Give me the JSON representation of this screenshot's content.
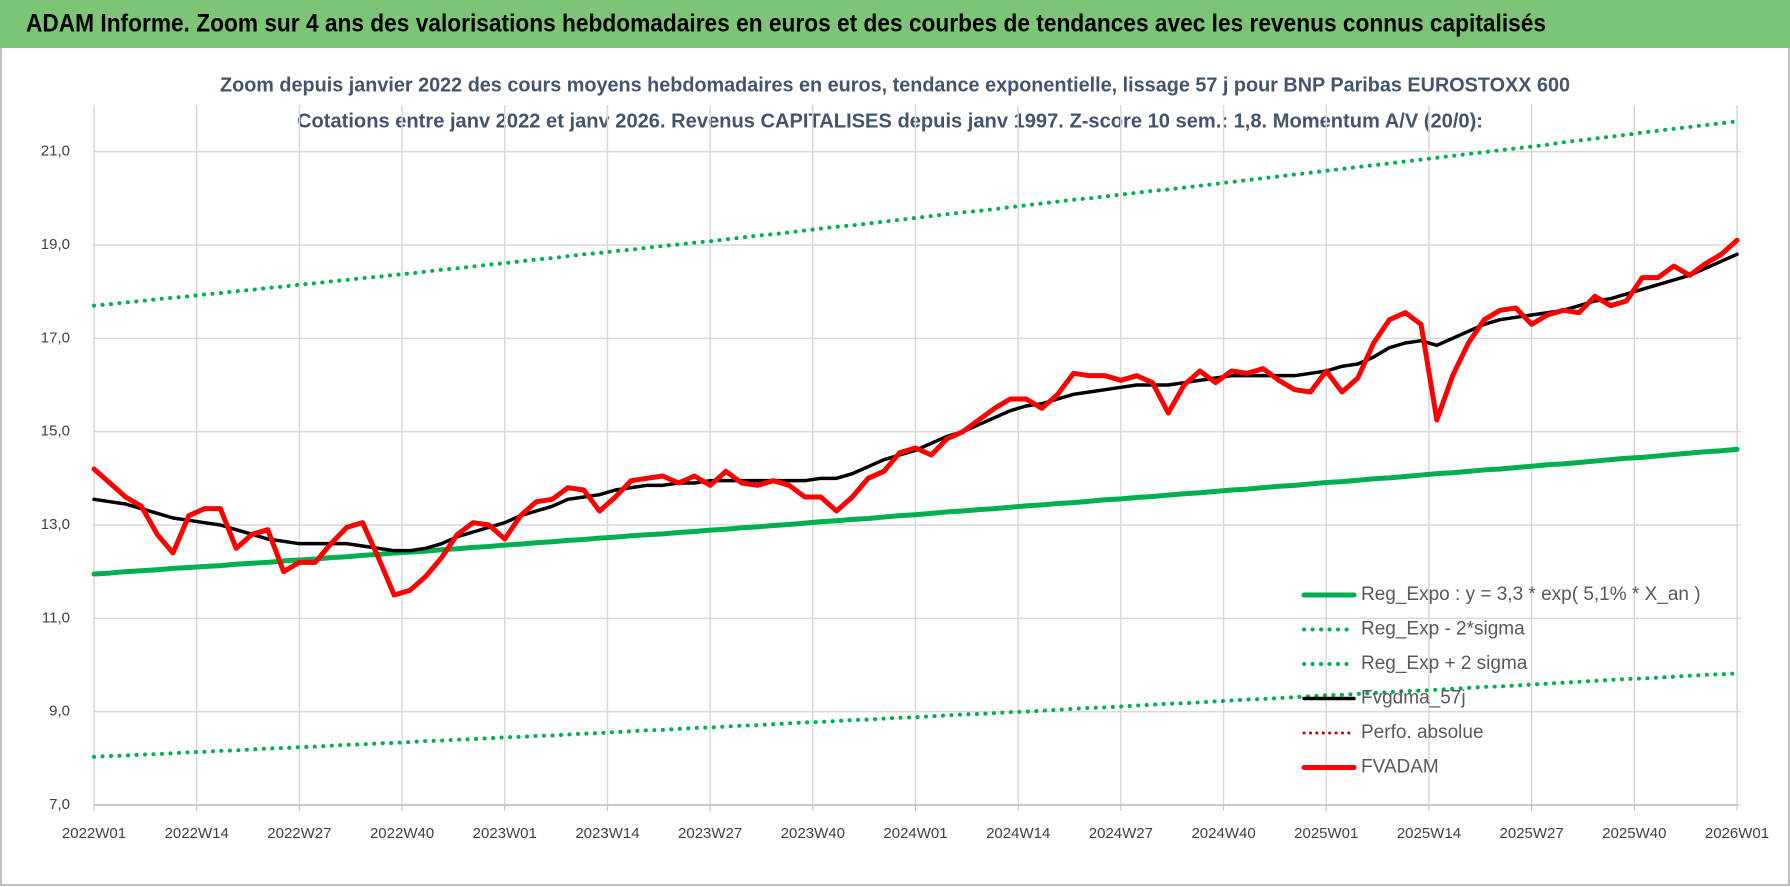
{
  "header": {
    "title": "ADAM Informe. Zoom sur 4 ans des valorisations hebdomadaires en euros et des courbes de tendances avec les revenus connus capitalisés"
  },
  "chart_data": {
    "type": "line",
    "title": [
      "Zoom depuis janvier 2022 des cours moyens hebdomadaires en euros, tendance exponentielle, lissage 57 j pour BNP Paribas EUROSTOXX 600",
      "Cotations entre janv 2022 et janv 2026. Revenus CAPITALISES depuis janv 1997. Z-score 10 sem.: 1,8. Momentum A/V (20/0):"
    ],
    "x": [
      0,
      2,
      4,
      6,
      8,
      10,
      12,
      14,
      16,
      18,
      20,
      22,
      24,
      26,
      28,
      30,
      32,
      34,
      36,
      38,
      40,
      42,
      44,
      46,
      48,
      50,
      52,
      54,
      56,
      58,
      60,
      62,
      64,
      66,
      68,
      70,
      72,
      74,
      76,
      78,
      80,
      82,
      84,
      86,
      88,
      90,
      92,
      94,
      96,
      98,
      100,
      102,
      104,
      106,
      108,
      110,
      112,
      114,
      116,
      118,
      120,
      122,
      124,
      126,
      128,
      130,
      132,
      134,
      136,
      138,
      140,
      142,
      144,
      146,
      148,
      150,
      152,
      154,
      156,
      158,
      160,
      162,
      164,
      166,
      168,
      170,
      172,
      174,
      176,
      178,
      180,
      182,
      184,
      186,
      188,
      190,
      192,
      194,
      196,
      198,
      200,
      202,
      204,
      206,
      208
    ],
    "xlim": [
      0,
      208
    ],
    "xticks": [
      {
        "value": 0,
        "label": "2022W01"
      },
      {
        "value": 13,
        "label": "2022W14"
      },
      {
        "value": 26,
        "label": "2022W27"
      },
      {
        "value": 39,
        "label": "2022W40"
      },
      {
        "value": 52,
        "label": "2023W01"
      },
      {
        "value": 65,
        "label": "2023W14"
      },
      {
        "value": 78,
        "label": "2023W27"
      },
      {
        "value": 91,
        "label": "2023W40"
      },
      {
        "value": 104,
        "label": "2024W01"
      },
      {
        "value": 117,
        "label": "2024W14"
      },
      {
        "value": 130,
        "label": "2024W27"
      },
      {
        "value": 143,
        "label": "2024W40"
      },
      {
        "value": 156,
        "label": "2025W01"
      },
      {
        "value": 169,
        "label": "2025W14"
      },
      {
        "value": 182,
        "label": "2025W27"
      },
      {
        "value": 195,
        "label": "2025W40"
      },
      {
        "value": 208,
        "label": "2026W01"
      }
    ],
    "ylim": [
      7,
      22
    ],
    "yticks": [
      {
        "value": 7,
        "label": "7,0"
      },
      {
        "value": 9,
        "label": "9,0"
      },
      {
        "value": 11,
        "label": "11,0"
      },
      {
        "value": 13,
        "label": "13,0"
      },
      {
        "value": 15,
        "label": "15,0"
      },
      {
        "value": 17,
        "label": "17,0"
      },
      {
        "value": 19,
        "label": "19,0"
      },
      {
        "value": 21,
        "label": "21,0"
      }
    ],
    "grid": true,
    "legend": "lower right",
    "series": [
      {
        "name": "Reg_Expo : y = 3,3 * exp( 5,1% *  X_an )",
        "color": "#00b050",
        "style": "solid",
        "width": 5,
        "values": [
          11.95,
          11.97,
          12.0,
          12.02,
          12.04,
          12.07,
          12.09,
          12.11,
          12.13,
          12.16,
          12.18,
          12.2,
          12.23,
          12.25,
          12.27,
          12.3,
          12.32,
          12.35,
          12.37,
          12.4,
          12.42,
          12.44,
          12.47,
          12.49,
          12.52,
          12.54,
          12.57,
          12.59,
          12.62,
          12.64,
          12.67,
          12.69,
          12.72,
          12.74,
          12.77,
          12.79,
          12.81,
          12.84,
          12.86,
          12.89,
          12.91,
          12.94,
          12.96,
          12.99,
          13.01,
          13.04,
          13.07,
          13.09,
          13.12,
          13.14,
          13.17,
          13.2,
          13.22,
          13.25,
          13.28,
          13.3,
          13.33,
          13.35,
          13.38,
          13.41,
          13.43,
          13.46,
          13.48,
          13.51,
          13.54,
          13.56,
          13.59,
          13.61,
          13.64,
          13.67,
          13.69,
          13.72,
          13.75,
          13.77,
          13.8,
          13.83,
          13.85,
          13.88,
          13.91,
          13.93,
          13.96,
          13.99,
          14.01,
          14.04,
          14.07,
          14.1,
          14.12,
          14.15,
          14.18,
          14.2,
          14.23,
          14.26,
          14.29,
          14.31,
          14.34,
          14.37,
          14.4,
          14.43,
          14.45,
          14.48,
          14.51,
          14.54,
          14.57,
          14.59,
          14.62
        ]
      },
      {
        "name": "Reg_Exp - 2*sigma",
        "color": "#00b050",
        "style": "dotted",
        "width": 4,
        "values": [
          8.03,
          8.05,
          8.06,
          8.08,
          8.09,
          8.11,
          8.13,
          8.14,
          8.16,
          8.17,
          8.19,
          8.21,
          8.22,
          8.24,
          8.25,
          8.27,
          8.29,
          8.3,
          8.32,
          8.33,
          8.35,
          8.37,
          8.38,
          8.4,
          8.41,
          8.43,
          8.45,
          8.46,
          8.48,
          8.49,
          8.51,
          8.53,
          8.54,
          8.56,
          8.58,
          8.6,
          8.61,
          8.63,
          8.65,
          8.66,
          8.68,
          8.7,
          8.71,
          8.73,
          8.75,
          8.77,
          8.78,
          8.8,
          8.82,
          8.83,
          8.85,
          8.87,
          8.88,
          8.9,
          8.92,
          8.94,
          8.95,
          8.97,
          8.99,
          9.0,
          9.02,
          9.04,
          9.06,
          9.08,
          9.09,
          9.11,
          9.13,
          9.15,
          9.17,
          9.18,
          9.2,
          9.22,
          9.24,
          9.26,
          9.27,
          9.29,
          9.31,
          9.33,
          9.35,
          9.36,
          9.38,
          9.4,
          9.42,
          9.44,
          9.45,
          9.47,
          9.49,
          9.51,
          9.53,
          9.54,
          9.56,
          9.58,
          9.6,
          9.62,
          9.64,
          9.66,
          9.68,
          9.7,
          9.71,
          9.73,
          9.75,
          9.77,
          9.79,
          9.8,
          9.82
        ]
      },
      {
        "name": "Reg_Exp + 2 sigma",
        "color": "#00b050",
        "style": "dotted",
        "width": 4,
        "values": [
          17.7,
          17.73,
          17.77,
          17.8,
          17.84,
          17.87,
          17.9,
          17.94,
          17.97,
          18.01,
          18.04,
          18.08,
          18.11,
          18.15,
          18.18,
          18.22,
          18.25,
          18.29,
          18.32,
          18.36,
          18.39,
          18.43,
          18.47,
          18.5,
          18.54,
          18.58,
          18.61,
          18.65,
          18.69,
          18.72,
          18.76,
          18.8,
          18.83,
          18.87,
          18.9,
          18.94,
          18.98,
          19.01,
          19.05,
          19.08,
          19.12,
          19.16,
          19.2,
          19.23,
          19.27,
          19.31,
          19.35,
          19.39,
          19.42,
          19.46,
          19.5,
          19.54,
          19.58,
          19.62,
          19.66,
          19.7,
          19.73,
          19.77,
          19.81,
          19.85,
          19.89,
          19.93,
          19.97,
          20.0,
          20.04,
          20.08,
          20.12,
          20.16,
          20.19,
          20.23,
          20.27,
          20.31,
          20.35,
          20.39,
          20.43,
          20.47,
          20.51,
          20.55,
          20.59,
          20.63,
          20.67,
          20.71,
          20.75,
          20.79,
          20.83,
          20.87,
          20.91,
          20.95,
          20.99,
          21.03,
          21.07,
          21.11,
          21.15,
          21.2,
          21.24,
          21.28,
          21.32,
          21.36,
          21.41,
          21.45,
          21.49,
          21.53,
          21.57,
          21.61,
          21.65
        ]
      },
      {
        "name": "Fvgdma_57j",
        "color": "#000000",
        "style": "solid",
        "width": 3.5,
        "values": [
          13.55,
          13.5,
          13.45,
          13.35,
          13.25,
          13.15,
          13.1,
          13.05,
          13.0,
          12.9,
          12.8,
          12.7,
          12.65,
          12.6,
          12.6,
          12.6,
          12.6,
          12.55,
          12.5,
          12.45,
          12.45,
          12.5,
          12.6,
          12.75,
          12.85,
          12.95,
          13.05,
          13.2,
          13.3,
          13.4,
          13.55,
          13.6,
          13.65,
          13.75,
          13.8,
          13.85,
          13.85,
          13.9,
          13.9,
          13.95,
          13.95,
          13.95,
          13.95,
          13.95,
          13.95,
          13.95,
          14.0,
          14.0,
          14.1,
          14.25,
          14.4,
          14.5,
          14.6,
          14.75,
          14.9,
          15.0,
          15.15,
          15.3,
          15.45,
          15.55,
          15.6,
          15.7,
          15.8,
          15.85,
          15.9,
          15.95,
          16.0,
          16.0,
          16.0,
          16.05,
          16.1,
          16.15,
          16.2,
          16.2,
          16.2,
          16.2,
          16.2,
          16.25,
          16.3,
          16.4,
          16.45,
          16.6,
          16.8,
          16.9,
          16.95,
          16.85,
          17.0,
          17.15,
          17.3,
          17.4,
          17.45,
          17.5,
          17.55,
          17.6,
          17.7,
          17.8,
          17.85,
          17.95,
          18.05,
          18.15,
          18.25,
          18.35,
          18.5,
          18.65,
          18.8
        ]
      },
      {
        "name": "Perfo. absolue",
        "color": "#c00000",
        "style": "dotted",
        "width": 3
      },
      {
        "name": "FVADAM",
        "color": "#ff0000",
        "style": "solid",
        "width": 5,
        "values": [
          14.2,
          13.9,
          13.6,
          13.4,
          12.8,
          12.4,
          13.2,
          13.35,
          13.35,
          12.5,
          12.8,
          12.9,
          12.0,
          12.2,
          12.2,
          12.6,
          12.95,
          13.05,
          12.3,
          11.5,
          11.6,
          11.9,
          12.3,
          12.8,
          13.05,
          13.0,
          12.7,
          13.2,
          13.5,
          13.55,
          13.8,
          13.75,
          13.3,
          13.6,
          13.95,
          14.0,
          14.05,
          13.9,
          14.05,
          13.85,
          14.15,
          13.9,
          13.85,
          13.95,
          13.85,
          13.6,
          13.6,
          13.3,
          13.6,
          14.0,
          14.15,
          14.55,
          14.65,
          14.5,
          14.85,
          15.0,
          15.25,
          15.5,
          15.7,
          15.7,
          15.5,
          15.8,
          16.25,
          16.2,
          16.2,
          16.1,
          16.2,
          16.05,
          15.4,
          16.0,
          16.3,
          16.05,
          16.3,
          16.25,
          16.35,
          16.1,
          15.9,
          15.85,
          16.3,
          15.85,
          16.15,
          16.9,
          17.4,
          17.55,
          17.3,
          15.25,
          16.2,
          16.9,
          17.4,
          17.6,
          17.65,
          17.3,
          17.5,
          17.6,
          17.55,
          17.9,
          17.7,
          17.8,
          18.3,
          18.3,
          18.55,
          18.35,
          18.6,
          18.8,
          19.1
        ]
      }
    ]
  }
}
